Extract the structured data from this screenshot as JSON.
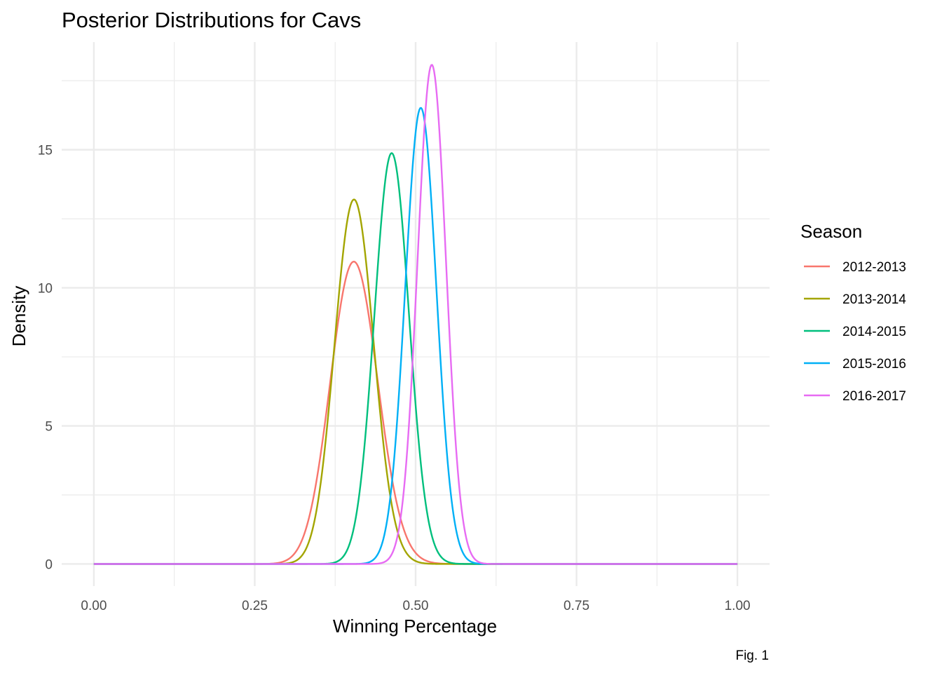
{
  "chart_data": {
    "type": "line",
    "title": "Posterior Distributions for Cavs",
    "xlabel": "Winning Percentage",
    "ylabel": "Density",
    "caption": "Fig. 1",
    "xlim": [
      -0.05,
      1.05
    ],
    "ylim": [
      -0.8,
      18.9
    ],
    "x_ticks": [
      0,
      0.25,
      0.5,
      0.75,
      1
    ],
    "x_tick_labels": [
      "0.00",
      "0.25",
      "0.50",
      "0.75",
      "1.00"
    ],
    "y_ticks": [
      0,
      5,
      10,
      15
    ],
    "y_tick_labels": [
      "0",
      "5",
      "10",
      "15"
    ],
    "grid": true,
    "legend": {
      "title": "Season",
      "placement": "right"
    },
    "series": [
      {
        "name": "2012-2013",
        "color": "#F8766D",
        "shape": "beta",
        "peak_x": 0.405,
        "peak_y": 10.95,
        "sd": 0.0365
      },
      {
        "name": "2013-2014",
        "color": "#A3A500",
        "shape": "beta",
        "peak_x": 0.405,
        "peak_y": 13.2,
        "sd": 0.0302
      },
      {
        "name": "2014-2015",
        "color": "#00BF7D",
        "shape": "beta",
        "peak_x": 0.463,
        "peak_y": 14.88,
        "sd": 0.0268
      },
      {
        "name": "2015-2016",
        "color": "#00B0F6",
        "shape": "beta",
        "peak_x": 0.508,
        "peak_y": 16.52,
        "sd": 0.0241
      },
      {
        "name": "2016-2017",
        "color": "#E76BF3",
        "shape": "beta",
        "peak_x": 0.525,
        "peak_y": 18.08,
        "sd": 0.0221
      }
    ]
  }
}
